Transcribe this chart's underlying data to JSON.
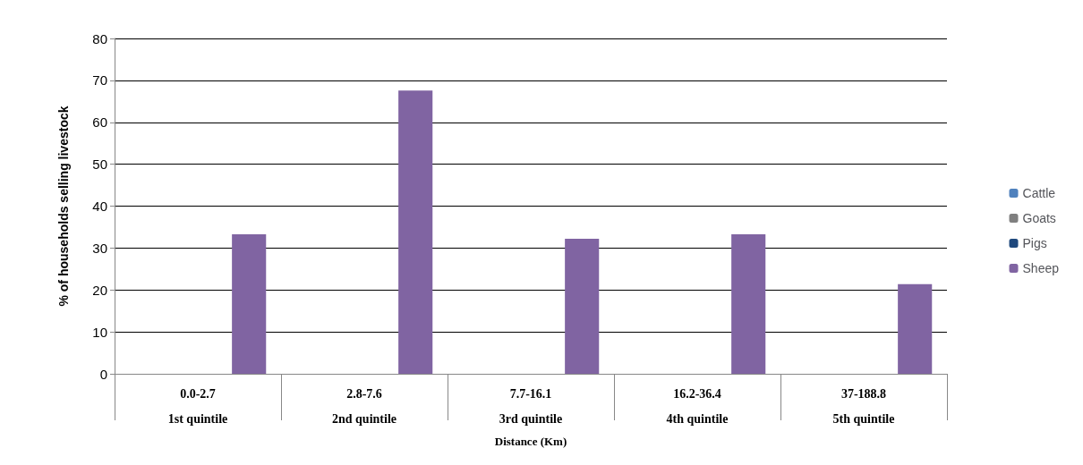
{
  "chart_data": {
    "type": "bar",
    "ylabel": "% of households selling livestock",
    "xlabel": "Distance (Km)",
    "categories": [
      "0.0-2.7\n1st quintile",
      "2.8-7.6\n2nd quintile",
      "7.7-16.1\n3rd quintile",
      "16.2-36.4\n4th quintile",
      "37-188.8\n5th quintile"
    ],
    "series": [
      {
        "name": "Cattle",
        "color": "#4f81bd",
        "values": [
          null,
          null,
          null,
          null,
          null
        ]
      },
      {
        "name": "Goats",
        "color": "#7f7f7f",
        "values": [
          null,
          null,
          null,
          null,
          null
        ]
      },
      {
        "name": "Pigs",
        "color": "#1f497d",
        "values": [
          null,
          null,
          null,
          null,
          null
        ]
      },
      {
        "name": "Sheep",
        "color": "#8064a2",
        "values": [
          33.3,
          67.6,
          32.2,
          33.3,
          21.4
        ]
      }
    ],
    "ylim": [
      0,
      80
    ],
    "yticks": [
      0,
      10,
      20,
      30,
      40,
      50,
      60,
      70,
      80
    ],
    "grid": "y",
    "legend": "right"
  }
}
